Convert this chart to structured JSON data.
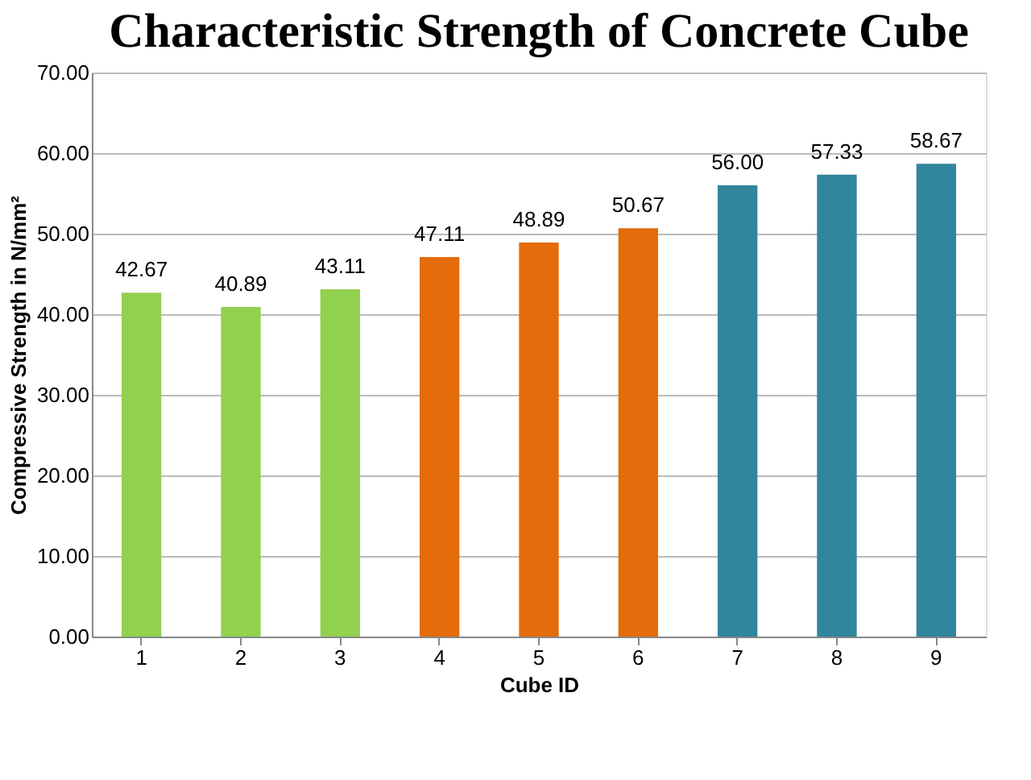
{
  "chart_data": {
    "type": "bar",
    "title": "Characteristic Strength of Concrete Cube",
    "xlabel": "Cube ID",
    "ylabel": "Compressive Strength in N/mm²",
    "categories": [
      "1",
      "2",
      "3",
      "4",
      "5",
      "6",
      "7",
      "8",
      "9"
    ],
    "values": [
      42.67,
      40.89,
      43.11,
      47.11,
      48.89,
      50.67,
      56.0,
      57.33,
      58.67
    ],
    "value_labels": [
      "42.67",
      "40.89",
      "43.11",
      "47.11",
      "48.89",
      "50.67",
      "56.00",
      "57.33",
      "58.67"
    ],
    "colors": [
      "#92d050",
      "#92d050",
      "#92d050",
      "#e46c0a",
      "#e46c0a",
      "#e46c0a",
      "#31859c",
      "#31859c",
      "#31859c"
    ],
    "ylim": [
      0,
      70
    ],
    "yticks": [
      {
        "value": 0,
        "label": "0.00"
      },
      {
        "value": 10,
        "label": "10.00"
      },
      {
        "value": 20,
        "label": "20.00"
      },
      {
        "value": 30,
        "label": "30.00"
      },
      {
        "value": 40,
        "label": "40.00"
      },
      {
        "value": 50,
        "label": "50.00"
      },
      {
        "value": 60,
        "label": "60.00"
      },
      {
        "value": 70,
        "label": "70.00"
      }
    ],
    "grid": "y"
  }
}
